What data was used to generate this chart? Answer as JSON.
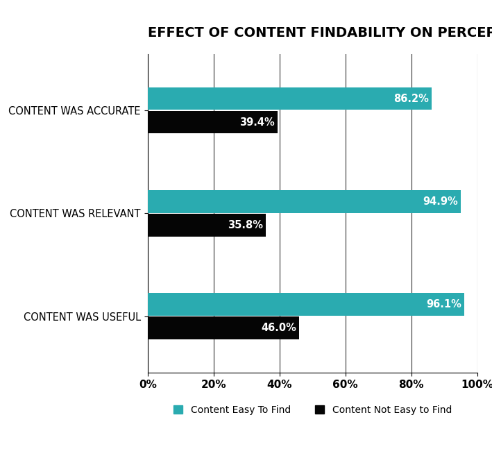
{
  "title": "EFFECT OF CONTENT FINDABILITY ON PERCEPTION",
  "categories": [
    "CONTENT WAS ACCURATE",
    "CONTENT WAS RELEVANT",
    "CONTENT WAS USEFUL"
  ],
  "easy_values": [
    86.2,
    94.9,
    96.1
  ],
  "hard_values": [
    39.4,
    35.8,
    46.0
  ],
  "easy_color": "#2aabb0",
  "hard_color": "#050505",
  "label_color_easy": "#ffffff",
  "label_color_hard": "#ffffff",
  "xlim": [
    0,
    100
  ],
  "xticks": [
    0,
    20,
    40,
    60,
    80,
    100
  ],
  "xticklabels": [
    "0%",
    "20%",
    "40%",
    "60%",
    "80%",
    "100%"
  ],
  "legend_easy": "Content Easy To Find",
  "legend_hard": "Content Not Easy to Find",
  "bar_height": 0.22,
  "title_fontsize": 14,
  "tick_fontsize": 11,
  "label_fontsize": 10.5,
  "ytick_fontsize": 10.5,
  "background_color": "#ffffff",
  "grid_color": "#333333"
}
